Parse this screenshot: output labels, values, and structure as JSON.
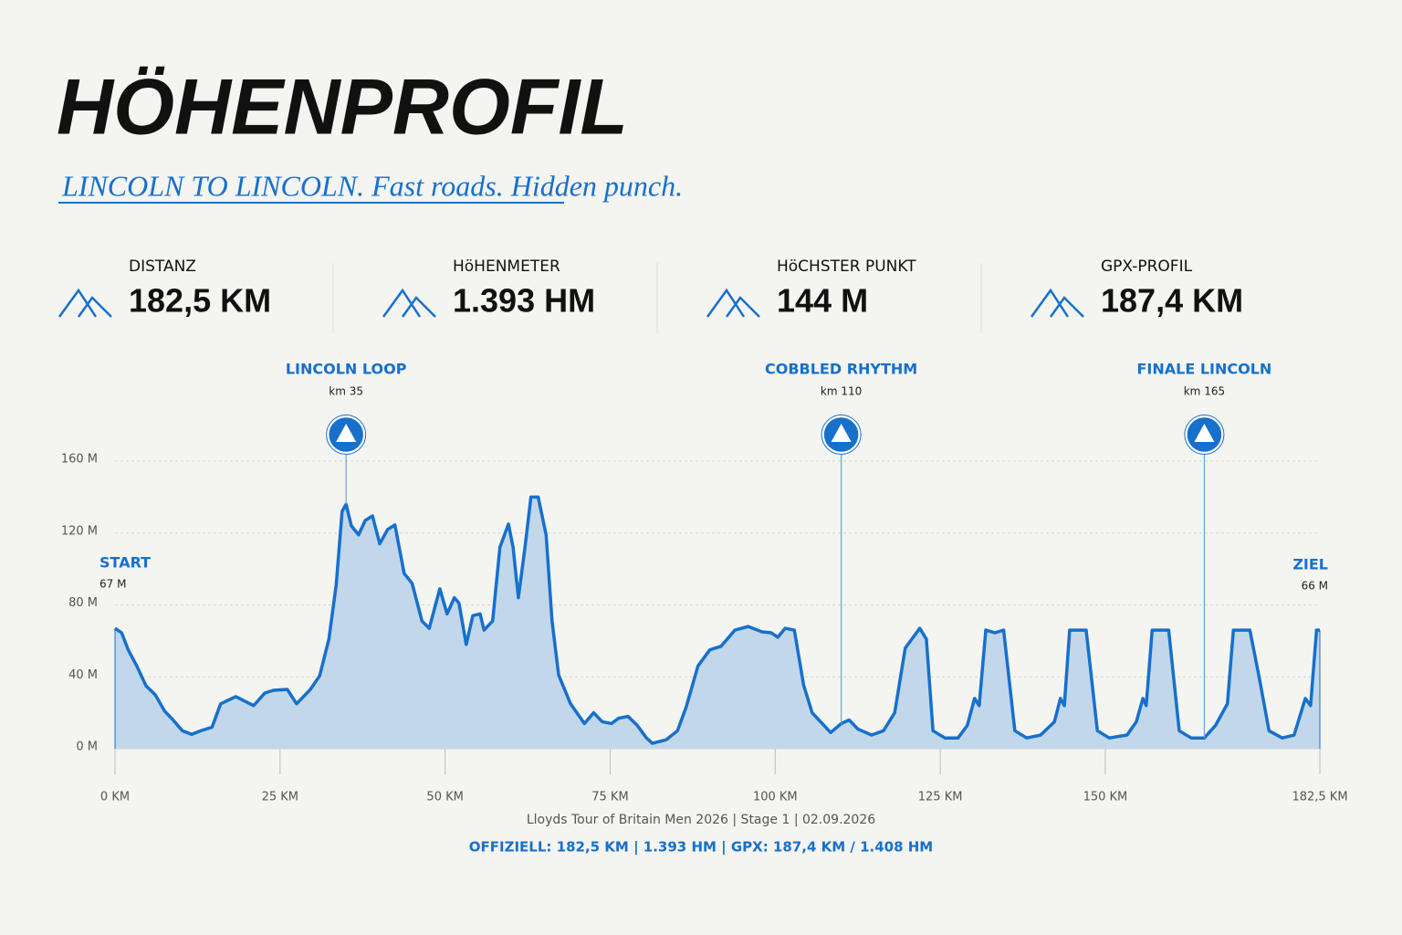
{
  "header": {
    "title": "HÖHENPROFIL",
    "subtitle": "LINCOLN TO LINCOLN. Fast roads. Hidden punch."
  },
  "stats": [
    {
      "label": "DISTANZ",
      "value": "182,5 KM"
    },
    {
      "label": "HöHENMETER",
      "value": "1.393 HM"
    },
    {
      "label": "HöCHSTER PUNKT",
      "value": "144 M"
    },
    {
      "label": "GPX-PROFIL",
      "value": "187,4 KM"
    }
  ],
  "chart_data": {
    "type": "area",
    "color": "#1670cc",
    "fill": "#c2d7ea",
    "grid": true,
    "x": [
      0,
      1,
      2,
      3.3,
      4.7,
      6.1,
      7.5,
      8.8,
      10.2,
      11.6,
      13,
      14.7,
      16,
      18.3,
      19.9,
      21,
      22.7,
      24,
      26.1,
      27.5,
      29.6,
      31,
      32.4,
      33.5,
      34.4,
      35,
      35.8,
      36.9,
      37.9,
      39,
      40.1,
      41.3,
      42.4,
      43.8,
      45,
      46.5,
      47.6,
      49.2,
      50.3,
      51.4,
      52.1,
      53.2,
      54.2,
      55.3,
      55.9,
      57.2,
      58.3,
      59.6,
      60.3,
      61.1,
      62.1,
      63,
      64.1,
      65.3,
      66.2,
      67.2,
      69,
      71.1,
      72.5,
      73.8,
      75.2,
      76.3,
      77.7,
      79.1,
      80.5,
      81.4,
      83.5,
      85.2,
      86.5,
      88.3,
      90.1,
      91.8,
      93.9,
      95.9,
      98,
      99.4,
      100.4,
      101.5,
      102.9,
      104.3,
      105.6,
      108.4,
      110,
      111.2,
      112.5,
      114.6,
      116.4,
      118.1,
      119.7,
      121.9,
      122.9,
      123.9,
      125.7,
      127.7,
      129.1,
      130.2,
      130.9,
      131.9,
      133.3,
      134.6,
      136.3,
      138.1,
      140.2,
      142.3,
      143.2,
      143.8,
      144.6,
      147.1,
      148.8,
      150.6,
      153.3,
      154.7,
      155.7,
      156.2,
      157.1,
      159.6,
      161.2,
      163,
      165,
      166.7,
      168.5,
      169.4,
      171.9,
      173.4,
      174.8,
      176.8,
      178.6,
      180.3,
      181.1,
      182,
      182.5
    ],
    "values": [
      67,
      64.5,
      55,
      46,
      35,
      30,
      21,
      16,
      10,
      8,
      10,
      12,
      25,
      29,
      26,
      24,
      31,
      32.5,
      33,
      25,
      33,
      40.6,
      61,
      91,
      132,
      136,
      124,
      119,
      127,
      129.5,
      114,
      122,
      124.5,
      97.5,
      92,
      71,
      67,
      89,
      75,
      84,
      81,
      58,
      74,
      75,
      66,
      71,
      112,
      125,
      112,
      84,
      112,
      140,
      140,
      119,
      71,
      41,
      25,
      14,
      20,
      15,
      14,
      17,
      18,
      13,
      6,
      3,
      5,
      10,
      23,
      46,
      55,
      57,
      66,
      68,
      65,
      64.5,
      62,
      67,
      66,
      35.5,
      20,
      9,
      14,
      16,
      11,
      7.6,
      10,
      20,
      56,
      67,
      61,
      10,
      6,
      6,
      13,
      28,
      24,
      66,
      64.5,
      66,
      10,
      6,
      7.6,
      15,
      28,
      24,
      66,
      66,
      10,
      6,
      7.6,
      15,
      28,
      24,
      66,
      66,
      10,
      6,
      6,
      13,
      25,
      66,
      66,
      38,
      10,
      6,
      7.6,
      28,
      24,
      66,
      66
    ],
    "xlim": [
      0,
      182.5
    ],
    "ylim": [
      0,
      160
    ],
    "xticks": [
      {
        "value": 0,
        "label": "0 KM"
      },
      {
        "value": 25,
        "label": "25 KM"
      },
      {
        "value": 50,
        "label": "50 KM"
      },
      {
        "value": 75,
        "label": "75 KM"
      },
      {
        "value": 100,
        "label": "100 KM"
      },
      {
        "value": 125,
        "label": "125 KM"
      },
      {
        "value": 150,
        "label": "150 KM"
      },
      {
        "value": 182.5,
        "label": "182,5 KM"
      }
    ],
    "yticks": [
      {
        "value": 0,
        "label": "0 M"
      },
      {
        "value": 40,
        "label": "40 M"
      },
      {
        "value": 80,
        "label": "80 M"
      },
      {
        "value": 120,
        "label": "120 M"
      },
      {
        "value": 160,
        "label": "160 M"
      }
    ],
    "annotations": [
      {
        "label": "LINCOLN LOOP",
        "sublabel": "km 35",
        "x": 35
      },
      {
        "label": "COBBLED RHYTHM",
        "sublabel": "km 110",
        "x": 110
      },
      {
        "label": "FINALE LINCOLN",
        "sublabel": "km 165",
        "x": 165
      }
    ],
    "start": {
      "label": "START",
      "sublabel": "67 M"
    },
    "finish": {
      "label": "ZIEL",
      "sublabel": "66 M"
    }
  },
  "footer": {
    "caption": "Lloyds Tour of Britain Men 2026 | Stage 1 | 02.09.2026",
    "summary": "OFFIZIELL: 182,5 KM | 1.393 HM | GPX: 187,4 KM / 1.408 HM"
  }
}
